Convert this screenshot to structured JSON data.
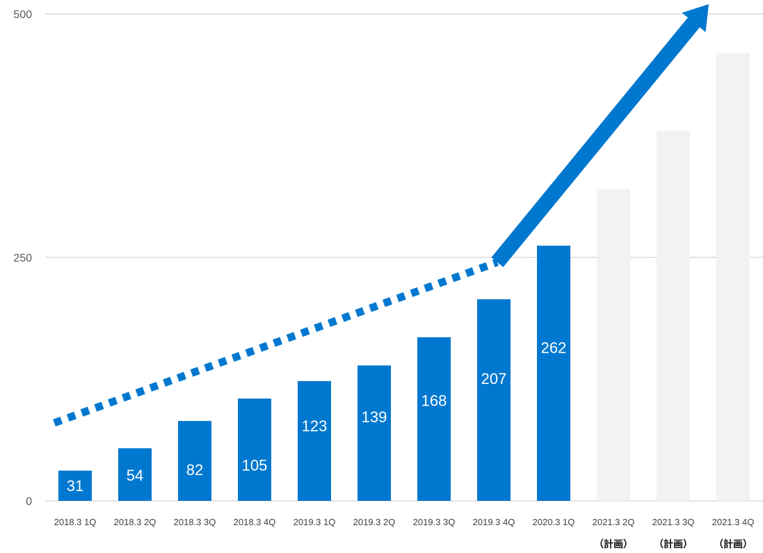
{
  "chart_data": {
    "type": "bar",
    "title": "",
    "xlabel": "",
    "ylabel": "",
    "ylim": [
      0,
      500
    ],
    "yticks": [
      "0",
      "250",
      "500"
    ],
    "grid": true,
    "categories": [
      "2018.3 1Q",
      "2018.3 2Q",
      "2018.3 3Q",
      "2018.3 4Q",
      "2019.3 1Q",
      "2019.3 2Q",
      "2019.3 3Q",
      "2019.3 4Q",
      "2020.3 1Q",
      "2021.3 2Q",
      "2021.3 3Q",
      "2021.3 4Q"
    ],
    "sublabels": [
      "",
      "",
      "",
      "",
      "",
      "",
      "",
      "",
      "",
      "（計画）",
      "（計画）",
      "（計画）"
    ],
    "values": [
      31,
      54,
      82,
      105,
      123,
      139,
      168,
      207,
      262,
      320,
      380,
      460
    ],
    "data_labels": [
      "31",
      "54",
      "82",
      "105",
      "123",
      "139",
      "168",
      "207",
      "262",
      "",
      "",
      ""
    ],
    "planned": [
      false,
      false,
      false,
      false,
      false,
      false,
      false,
      false,
      false,
      true,
      true,
      true
    ],
    "trend": {
      "dotted": [
        [
          0,
          80
        ],
        [
          7,
          245
        ]
      ],
      "arrow": [
        [
          7,
          245
        ],
        [
          11,
          510
        ]
      ]
    },
    "colors": {
      "actual": "#0078CF",
      "planned": "#F2F2F2",
      "grid": "#D9D9D9",
      "trend": "#0078CF"
    }
  }
}
